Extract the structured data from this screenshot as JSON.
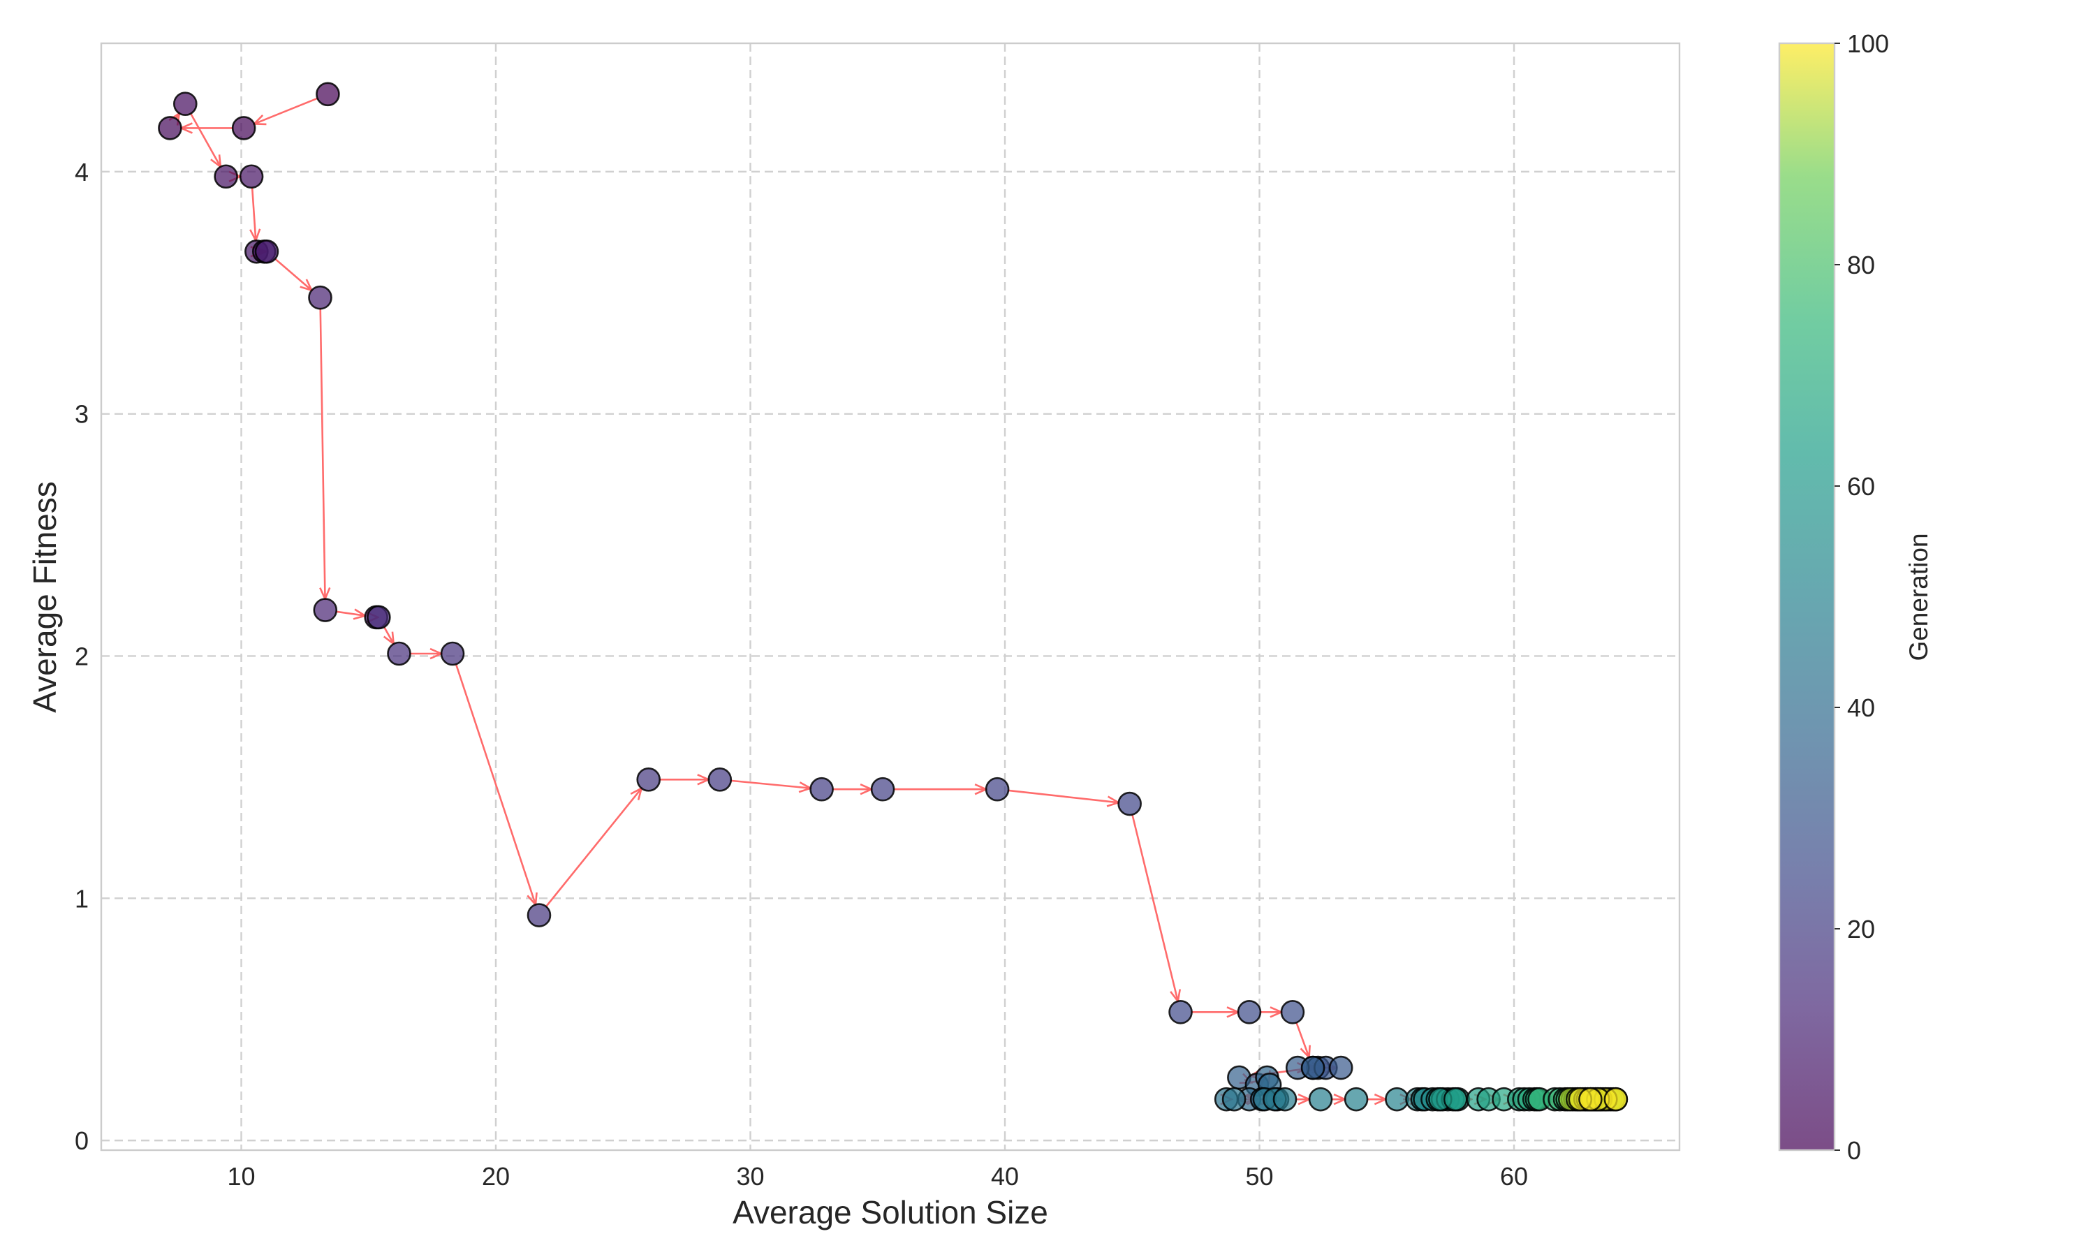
{
  "chart_data": {
    "type": "scatter",
    "xlabel": "Average Solution Size",
    "ylabel": "Average Fitness",
    "xlim": [
      4.5,
      66.5
    ],
    "ylim": [
      -0.04,
      4.53
    ],
    "x_ticks": [
      10,
      20,
      30,
      40,
      50,
      60
    ],
    "y_ticks": [
      0,
      1,
      2,
      3,
      4
    ],
    "grid": true,
    "colormap": "viridis",
    "point_alpha": 0.7,
    "point_edge_color": "#000000",
    "arrow_color": "#ff6b6b",
    "colorbar": {
      "label": "Generation",
      "range": [
        0,
        100
      ],
      "ticks": [
        0,
        20,
        40,
        60,
        80,
        100
      ]
    },
    "series": [
      {
        "generation": [
          0,
          1,
          2,
          3,
          4,
          5,
          6,
          7,
          8,
          9,
          10,
          11,
          12,
          13,
          14,
          15,
          16,
          17,
          18,
          19,
          20,
          21,
          22,
          23,
          24,
          25,
          26,
          27,
          28,
          29,
          30,
          31,
          32,
          33,
          34,
          35,
          36,
          37,
          38,
          39,
          40,
          41,
          42,
          43,
          44,
          45,
          46,
          47,
          48,
          49,
          50,
          51,
          52,
          53,
          54,
          55,
          56,
          57,
          58,
          59,
          60,
          61,
          62,
          63,
          64,
          65,
          66,
          67,
          68,
          69,
          70,
          71,
          72,
          73,
          74,
          75,
          76,
          77,
          78,
          79,
          80,
          81,
          82,
          83,
          84,
          85,
          86,
          87,
          88,
          89,
          90,
          91,
          92,
          93,
          94,
          95,
          96,
          97,
          98,
          99,
          100
        ],
        "x": [
          13.4,
          10.1,
          7.2,
          7.8,
          9.4,
          10.4,
          10.6,
          10.9,
          11.0,
          13.1,
          13.3,
          15.3,
          15.4,
          16.2,
          18.3,
          21.7,
          26.0,
          28.8,
          32.8,
          35.2,
          39.7,
          44.9,
          46.9,
          49.6,
          51.3,
          52.1,
          52.3,
          52.6,
          53.2,
          51.5,
          52.1,
          49.2,
          49.9,
          50.3,
          50.4,
          49.6,
          50.1,
          50.7,
          48.7,
          49.0,
          50.2,
          50.6,
          51.0,
          52.4,
          53.8,
          55.4,
          56.2,
          56.4,
          56.5,
          56.8,
          57.0,
          57.2,
          57.4,
          57.6,
          57.8,
          57.1,
          57.7,
          58.6,
          59.0,
          59.6,
          60.2,
          60.4,
          60.6,
          60.8,
          60.9,
          61.0,
          61.6,
          61.8,
          62.0,
          62.1,
          62.3,
          62.4,
          62.5,
          62.6,
          62.7,
          62.8,
          62.9,
          63.0,
          63.1,
          63.2,
          63.3,
          63.4,
          63.5,
          63.6,
          63.7,
          63.8,
          63.9,
          64.0,
          62.2,
          62.5,
          62.8,
          63.0,
          63.2,
          63.4,
          63.1,
          62.9,
          63.6,
          63.3,
          62.6,
          63.0,
          64.0
        ],
        "y": [
          4.32,
          4.18,
          4.18,
          4.28,
          3.98,
          3.98,
          3.67,
          3.67,
          3.67,
          3.48,
          2.19,
          2.16,
          2.16,
          2.01,
          2.01,
          0.93,
          1.49,
          1.49,
          1.45,
          1.45,
          1.45,
          1.39,
          0.53,
          0.53,
          0.53,
          0.3,
          0.3,
          0.3,
          0.3,
          0.3,
          0.3,
          0.26,
          0.23,
          0.26,
          0.23,
          0.17,
          0.17,
          0.17,
          0.17,
          0.17,
          0.17,
          0.17,
          0.17,
          0.17,
          0.17,
          0.17,
          0.17,
          0.17,
          0.17,
          0.17,
          0.17,
          0.17,
          0.17,
          0.17,
          0.17,
          0.17,
          0.17,
          0.17,
          0.17,
          0.17,
          0.17,
          0.17,
          0.17,
          0.17,
          0.17,
          0.17,
          0.17,
          0.17,
          0.17,
          0.17,
          0.17,
          0.17,
          0.17,
          0.17,
          0.17,
          0.17,
          0.17,
          0.17,
          0.17,
          0.17,
          0.17,
          0.17,
          0.17,
          0.17,
          0.17,
          0.17,
          0.17,
          0.17,
          0.17,
          0.17,
          0.17,
          0.17,
          0.17,
          0.17,
          0.17,
          0.17,
          0.17,
          0.17,
          0.17,
          0.17,
          0.17
        ]
      }
    ]
  }
}
